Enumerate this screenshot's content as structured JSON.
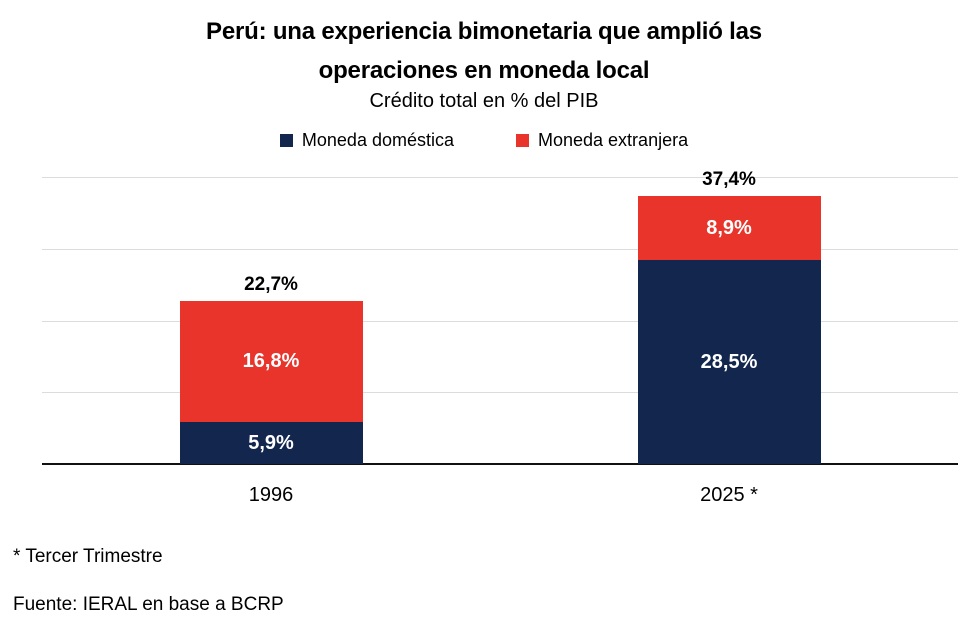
{
  "header": {
    "title_line1": "Perú: una experiencia bimonetaria que amplió las",
    "title_line2": "operaciones en moneda local",
    "subtitle": "Crédito total en % del PIB"
  },
  "footnotes": {
    "asterisk_note": "* Tercer Trimestre",
    "source": "Fuente: IERAL en base a BCRP"
  },
  "colors": {
    "domestic": "#12264E",
    "foreign": "#E8342B",
    "gridline": "#DCDCDC",
    "axis": "#111111"
  },
  "chart_data": {
    "type": "bar",
    "stacked": true,
    "title": "Perú: una experiencia bimonetaria que amplió las operaciones en moneda local",
    "subtitle": "Crédito total en % del PIB",
    "categories": [
      "1996",
      "2025 *"
    ],
    "series": [
      {
        "name": "Moneda doméstica",
        "color": "#12264E",
        "values": [
          5.9,
          28.5
        ],
        "labels": [
          "5,9%",
          "28,5%"
        ]
      },
      {
        "name": "Moneda extranjera",
        "color": "#E8342B",
        "values": [
          16.8,
          8.9
        ],
        "labels": [
          "16,8%",
          "8,9%"
        ]
      }
    ],
    "totals": [
      22.7,
      37.4
    ],
    "total_labels": [
      "22,7%",
      "37,4%"
    ],
    "xlabel": "",
    "ylabel": "",
    "ylim": [
      0,
      40
    ],
    "gridlines": [
      10,
      20,
      30,
      40
    ],
    "grid": true,
    "legend_position": "top"
  }
}
